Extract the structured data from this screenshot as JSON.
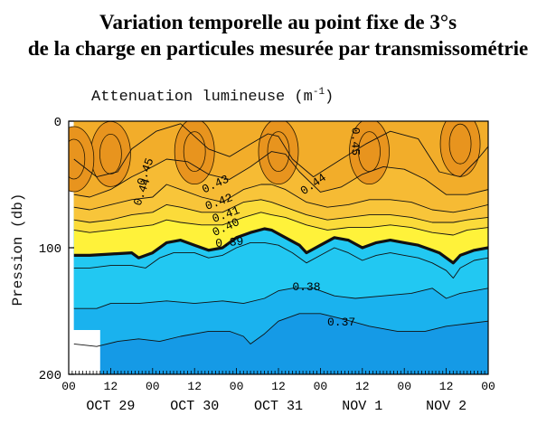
{
  "title_line1": "Variation temporelle au point fixe de 3°s",
  "title_line2": "de la charge en particules mesurée par transmissométrie",
  "chart_data": {
    "type": "heatmap",
    "subtitle_main": "Attenuation lumineuse (m",
    "subtitle_exp": "-1",
    "subtitle_close": ")",
    "ylabel": "Pression (db)",
    "xlabel": "",
    "ylim": [
      200,
      0
    ],
    "xlim": [
      0,
      120
    ],
    "y_ticks": [
      "0",
      "100",
      "200"
    ],
    "y_tick_values": [
      0,
      100,
      200
    ],
    "x_ticks": [
      "00",
      "12",
      "00",
      "12",
      "00",
      "12",
      "00",
      "12",
      "00",
      "12",
      "00"
    ],
    "x_tick_values": [
      0,
      12,
      24,
      36,
      48,
      60,
      72,
      84,
      96,
      108,
      120
    ],
    "day_labels": [
      "OCT 29",
      "OCT 30",
      "OCT 31",
      "NOV 1",
      "NOV 2"
    ],
    "day_centers": [
      12,
      36,
      60,
      84,
      108
    ],
    "data_start_hour": 1.5,
    "bold_contour": 0.395,
    "colors": {
      "deep_orange": "#e8941e",
      "orange": "#f2ad2a",
      "light_orange": "#f8c53a",
      "yellow": "#fff23a",
      "cyan": "#22c8f2",
      "blue_mid": "#1ab2ee",
      "blue_deep": "#159ae6"
    },
    "contours": [
      {
        "level": 0.44,
        "label": "0.44",
        "points": [
          [
            1.5,
            30
          ],
          [
            8,
            44
          ],
          [
            14,
            40
          ],
          [
            18,
            22
          ],
          [
            25,
            8
          ],
          [
            32,
            2
          ],
          [
            40,
            22
          ],
          [
            46,
            28
          ],
          [
            52,
            18
          ],
          [
            57,
            10
          ],
          [
            60,
            12
          ],
          [
            64,
            30
          ],
          [
            70,
            44
          ],
          [
            78,
            30
          ],
          [
            85,
            18
          ],
          [
            92,
            8
          ],
          [
            100,
            14
          ],
          [
            106,
            40
          ],
          [
            112,
            44
          ],
          [
            117,
            30
          ],
          [
            120,
            20
          ]
        ]
      },
      {
        "level": 0.43,
        "label": "0.43",
        "points": [
          [
            1.5,
            58
          ],
          [
            6,
            60
          ],
          [
            12,
            54
          ],
          [
            18,
            44
          ],
          [
            24,
            36
          ],
          [
            28,
            30
          ],
          [
            34,
            32
          ],
          [
            40,
            42
          ],
          [
            46,
            46
          ],
          [
            52,
            36
          ],
          [
            58,
            24
          ],
          [
            62,
            26
          ],
          [
            66,
            40
          ],
          [
            72,
            56
          ],
          [
            78,
            52
          ],
          [
            84,
            42
          ],
          [
            90,
            36
          ],
          [
            96,
            38
          ],
          [
            102,
            46
          ],
          [
            108,
            58
          ],
          [
            114,
            58
          ],
          [
            120,
            54
          ]
        ]
      },
      {
        "level": 0.42,
        "label": "0.42",
        "points": [
          [
            1.5,
            68
          ],
          [
            6,
            70
          ],
          [
            12,
            66
          ],
          [
            18,
            62
          ],
          [
            24,
            60
          ],
          [
            28,
            50
          ],
          [
            32,
            54
          ],
          [
            38,
            60
          ],
          [
            44,
            64
          ],
          [
            50,
            54
          ],
          [
            55,
            50
          ],
          [
            58,
            50
          ],
          [
            62,
            54
          ],
          [
            68,
            64
          ],
          [
            74,
            68
          ],
          [
            80,
            66
          ],
          [
            86,
            62
          ],
          [
            92,
            62
          ],
          [
            98,
            64
          ],
          [
            104,
            70
          ],
          [
            110,
            72
          ],
          [
            114,
            70
          ],
          [
            120,
            66
          ]
        ]
      },
      {
        "level": 0.41,
        "label": "0.41",
        "points": [
          [
            1.5,
            78
          ],
          [
            6,
            80
          ],
          [
            12,
            78
          ],
          [
            18,
            74
          ],
          [
            24,
            72
          ],
          [
            28,
            66
          ],
          [
            32,
            68
          ],
          [
            38,
            72
          ],
          [
            44,
            72
          ],
          [
            50,
            64
          ],
          [
            55,
            62
          ],
          [
            58,
            64
          ],
          [
            62,
            68
          ],
          [
            68,
            74
          ],
          [
            74,
            78
          ],
          [
            80,
            76
          ],
          [
            86,
            74
          ],
          [
            92,
            74
          ],
          [
            98,
            76
          ],
          [
            104,
            80
          ],
          [
            110,
            80
          ],
          [
            114,
            78
          ],
          [
            120,
            76
          ]
        ]
      },
      {
        "level": 0.4,
        "label": "0.40",
        "points": [
          [
            1.5,
            86
          ],
          [
            6,
            88
          ],
          [
            12,
            86
          ],
          [
            18,
            84
          ],
          [
            24,
            82
          ],
          [
            28,
            78
          ],
          [
            32,
            80
          ],
          [
            38,
            82
          ],
          [
            44,
            82
          ],
          [
            50,
            76
          ],
          [
            55,
            72
          ],
          [
            58,
            74
          ],
          [
            62,
            76
          ],
          [
            68,
            82
          ],
          [
            74,
            86
          ],
          [
            80,
            84
          ],
          [
            86,
            84
          ],
          [
            92,
            82
          ],
          [
            98,
            84
          ],
          [
            104,
            88
          ],
          [
            110,
            90
          ],
          [
            114,
            86
          ],
          [
            120,
            84
          ]
        ]
      },
      {
        "level": 0.395,
        "label": "",
        "points": [
          [
            1.5,
            106
          ],
          [
            6,
            106
          ],
          [
            12,
            105
          ],
          [
            18,
            104
          ],
          [
            20,
            108
          ],
          [
            24,
            104
          ],
          [
            28,
            96
          ],
          [
            32,
            94
          ],
          [
            36,
            98
          ],
          [
            40,
            102
          ],
          [
            44,
            100
          ],
          [
            48,
            92
          ],
          [
            52,
            88
          ],
          [
            56,
            85
          ],
          [
            58,
            86
          ],
          [
            62,
            92
          ],
          [
            66,
            98
          ],
          [
            68,
            104
          ],
          [
            72,
            98
          ],
          [
            76,
            92
          ],
          [
            80,
            94
          ],
          [
            84,
            100
          ],
          [
            88,
            96
          ],
          [
            92,
            94
          ],
          [
            96,
            96
          ],
          [
            100,
            98
          ],
          [
            104,
            102
          ],
          [
            106,
            104
          ],
          [
            108,
            108
          ],
          [
            110,
            112
          ],
          [
            112,
            106
          ],
          [
            116,
            102
          ],
          [
            120,
            100
          ]
        ]
      },
      {
        "level": 0.39,
        "label": "0.39",
        "points": [
          [
            1.5,
            116
          ],
          [
            6,
            116
          ],
          [
            12,
            114
          ],
          [
            18,
            114
          ],
          [
            22,
            116
          ],
          [
            26,
            108
          ],
          [
            30,
            104
          ],
          [
            36,
            104
          ],
          [
            40,
            108
          ],
          [
            44,
            106
          ],
          [
            48,
            100
          ],
          [
            52,
            96
          ],
          [
            56,
            96
          ],
          [
            60,
            98
          ],
          [
            64,
            104
          ],
          [
            68,
            112
          ],
          [
            72,
            106
          ],
          [
            76,
            100
          ],
          [
            80,
            104
          ],
          [
            84,
            110
          ],
          [
            88,
            106
          ],
          [
            92,
            104
          ],
          [
            96,
            106
          ],
          [
            100,
            108
          ],
          [
            104,
            112
          ],
          [
            108,
            118
          ],
          [
            110,
            124
          ],
          [
            112,
            116
          ],
          [
            116,
            110
          ],
          [
            120,
            108
          ]
        ]
      },
      {
        "level": 0.38,
        "label": "0.38",
        "points": [
          [
            1.5,
            148
          ],
          [
            8,
            148
          ],
          [
            12,
            144
          ],
          [
            20,
            144
          ],
          [
            28,
            142
          ],
          [
            36,
            144
          ],
          [
            44,
            142
          ],
          [
            50,
            144
          ],
          [
            56,
            140
          ],
          [
            60,
            134
          ],
          [
            64,
            132
          ],
          [
            70,
            132
          ],
          [
            76,
            138
          ],
          [
            82,
            140
          ],
          [
            90,
            138
          ],
          [
            98,
            136
          ],
          [
            104,
            132
          ],
          [
            108,
            140
          ],
          [
            112,
            136
          ],
          [
            120,
            132
          ]
        ]
      },
      {
        "level": 0.37,
        "label": "0.37",
        "points": [
          [
            1.5,
            176
          ],
          [
            8,
            178
          ],
          [
            14,
            174
          ],
          [
            20,
            172
          ],
          [
            26,
            174
          ],
          [
            32,
            170
          ],
          [
            40,
            166
          ],
          [
            46,
            166
          ],
          [
            50,
            170
          ],
          [
            52,
            176
          ],
          [
            56,
            168
          ],
          [
            60,
            158
          ],
          [
            66,
            152
          ],
          [
            72,
            152
          ],
          [
            78,
            156
          ],
          [
            86,
            162
          ],
          [
            94,
            166
          ],
          [
            102,
            166
          ],
          [
            108,
            162
          ],
          [
            114,
            160
          ],
          [
            120,
            158
          ]
        ]
      }
    ],
    "label_positions": [
      {
        "text": "0.45",
        "x": 22,
        "y": 40,
        "rot": -70
      },
      {
        "text": "0.44",
        "x": 21,
        "y": 56,
        "rot": -70
      },
      {
        "text": "0.45",
        "x": 82,
        "y": 16,
        "rot": 90
      },
      {
        "text": "0.43",
        "x": 42,
        "y": 50,
        "rot": -25
      },
      {
        "text": "0.44",
        "x": 70,
        "y": 50,
        "rot": -35
      },
      {
        "text": "0.42",
        "x": 43,
        "y": 64,
        "rot": -20
      },
      {
        "text": "0.41",
        "x": 45,
        "y": 74,
        "rot": -20
      },
      {
        "text": "0.40",
        "x": 45,
        "y": 84,
        "rot": -25
      },
      {
        "text": "0.39",
        "x": 46,
        "y": 96,
        "rot": -5
      },
      {
        "text": "0.38",
        "x": 68,
        "y": 131,
        "rot": 0
      },
      {
        "text": "0.37",
        "x": 78,
        "y": 159,
        "rot": 0
      }
    ],
    "blob_centers": [
      {
        "x": 12,
        "y": 26,
        "level": 0.45
      },
      {
        "x": 36,
        "y": 24,
        "level": 0.45
      },
      {
        "x": 60,
        "y": 24,
        "level": 0.45
      },
      {
        "x": 86,
        "y": 24,
        "level": 0.45
      },
      {
        "x": 112,
        "y": 18,
        "level": 0.45
      },
      {
        "x": 1.5,
        "y": 30,
        "level": 0.45
      }
    ],
    "missing_data": [
      {
        "x0": 0,
        "x1": 9,
        "y0": 165,
        "y1": 200
      }
    ]
  }
}
